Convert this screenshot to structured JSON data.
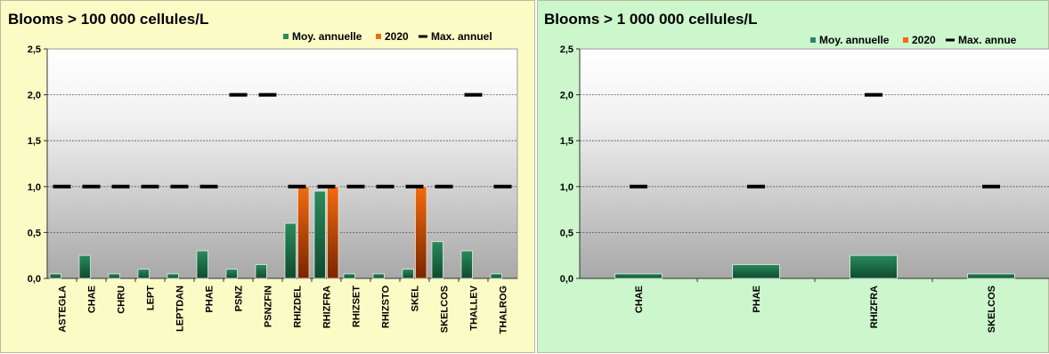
{
  "chart_data": [
    {
      "type": "bar",
      "title": "Blooms > 100 000 cellules/L",
      "legend": {
        "placement": "top-right",
        "entries": [
          {
            "label": "Moy. annuelle",
            "color": "#2a8a5c"
          },
          {
            "label": "2020",
            "color": "#f26b10"
          },
          {
            "label": "Max. annuel",
            "color": "#000000"
          }
        ]
      },
      "categories": [
        "ASTEGLA",
        "CHAE",
        "CHRU",
        "LEPT",
        "LEPTDAN",
        "PHAE",
        "PSNZ",
        "PSNZFIN",
        "RHIZDEL",
        "RHIZFRA",
        "RHIZSET",
        "RHIZSTO",
        "SKEL",
        "SKELCOS",
        "THALLEV",
        "THALROG"
      ],
      "series": [
        {
          "name": "Moy. annuelle",
          "values": [
            0.05,
            0.25,
            0.05,
            0.1,
            0.05,
            0.3,
            0.1,
            0.15,
            0.6,
            0.95,
            0.05,
            0.05,
            0.1,
            0.4,
            0.3,
            0.05
          ]
        },
        {
          "name": "2020",
          "values": [
            0,
            0,
            0,
            0,
            0,
            0,
            0,
            0,
            1,
            1,
            0,
            0,
            1,
            0,
            0,
            0
          ]
        },
        {
          "name": "Max. annuel",
          "values": [
            1,
            1,
            1,
            1,
            1,
            1,
            2,
            2,
            1,
            1,
            1,
            1,
            1,
            1,
            2,
            1
          ]
        }
      ],
      "ylim": [
        0,
        2.5
      ],
      "yticks": [
        "0,0",
        "0,5",
        "1,0",
        "1,5",
        "2,0",
        "2,5"
      ],
      "grid": true
    },
    {
      "type": "bar",
      "title": "Blooms > 1 000 000 cellules/L",
      "legend": {
        "placement": "top-right",
        "entries": [
          {
            "label": "Moy. annuelle",
            "color": "#2a8a5c"
          },
          {
            "label": "2020",
            "color": "#f26b10"
          },
          {
            "label": "Max. annue",
            "color": "#000000"
          }
        ]
      },
      "categories": [
        "CHAE",
        "PHAE",
        "RHIZFRA",
        "SKELCOS"
      ],
      "series": [
        {
          "name": "Moy. annuelle",
          "values": [
            0.05,
            0.15,
            0.25,
            0.05
          ]
        },
        {
          "name": "2020",
          "values": [
            0,
            0,
            0,
            0
          ]
        },
        {
          "name": "Max. annuel",
          "values": [
            1,
            1,
            2,
            1
          ]
        }
      ],
      "ylim": [
        0,
        2.5
      ],
      "yticks": [
        "0,0",
        "0,5",
        "1,0",
        "1,5",
        "2,0",
        "2,5"
      ],
      "grid": true
    }
  ]
}
